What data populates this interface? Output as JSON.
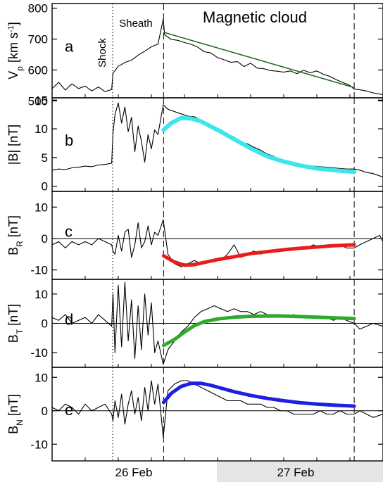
{
  "figure": {
    "annotations": {
      "shock": "Shock",
      "sheath": "Sheath",
      "magnetic_cloud": "Magnetic cloud"
    },
    "date_labels": [
      {
        "text": "26 Feb",
        "shaded": false
      },
      {
        "text": "27 Feb",
        "shaded": true
      }
    ],
    "colors": {
      "data_line": "#000000",
      "date_band": "#e5e5e5",
      "fit_v": "#1e6b1e",
      "fit_b": "#3de6ec",
      "fit_br": "#e81c1c",
      "fit_bt": "#2faa2f",
      "fit_bn": "#1f1fe0"
    }
  },
  "chart_data": [
    {
      "id": "vp",
      "type": "line",
      "panel_letter": "a",
      "ylabel_main": "V",
      "ylabel_sub": "p",
      "ylabel_unit_pre": " [km s",
      "ylabel_unit_sup": "-1",
      "ylabel_unit_post": "]",
      "x_unit": "fraction of time axis",
      "x_range": [
        0,
        1
      ],
      "ylim": [
        510,
        815
      ],
      "yticks": [
        500,
        600,
        700,
        800
      ],
      "zero_line": false,
      "events": {
        "shock": 0.183,
        "cloud_start": 0.337,
        "cloud_end": 0.913
      },
      "series": [
        {
          "role": "observed",
          "x": [
            0,
            0.02,
            0.04,
            0.06,
            0.08,
            0.1,
            0.12,
            0.14,
            0.16,
            0.18,
            0.184,
            0.2,
            0.22,
            0.24,
            0.26,
            0.28,
            0.3,
            0.32,
            0.336,
            0.34,
            0.36,
            0.38,
            0.4,
            0.42,
            0.44,
            0.46,
            0.48,
            0.5,
            0.52,
            0.54,
            0.56,
            0.58,
            0.6,
            0.62,
            0.64,
            0.66,
            0.68,
            0.7,
            0.72,
            0.74,
            0.76,
            0.78,
            0.8,
            0.82,
            0.84,
            0.86,
            0.88,
            0.9,
            0.913,
            0.93,
            0.95,
            0.97,
            1.0
          ],
          "values": [
            540,
            560,
            535,
            555,
            540,
            548,
            532,
            545,
            530,
            537,
            590,
            612,
            624,
            632,
            648,
            661,
            675,
            684,
            765,
            714,
            699,
            696,
            689,
            683,
            674,
            659,
            655,
            640,
            633,
            625,
            627,
            611,
            622,
            606,
            604,
            598,
            596,
            593,
            597,
            588,
            599,
            591,
            597,
            586,
            579,
            568,
            559,
            550,
            538,
            536,
            532,
            526,
            520
          ]
        },
        {
          "role": "fit",
          "x": [
            0.337,
            0.913
          ],
          "values": [
            722,
            543
          ]
        }
      ]
    },
    {
      "id": "b",
      "type": "line",
      "panel_letter": "b",
      "ylabel_main": "|B| [nT]",
      "x_unit": "fraction of time axis",
      "x_range": [
        0,
        1
      ],
      "ylim": [
        -0.9,
        15.4
      ],
      "yticks": [
        0,
        5,
        10,
        15
      ],
      "zero_line": false,
      "events": {
        "shock": 0.183,
        "cloud_start": 0.337,
        "cloud_end": 0.913
      },
      "series": [
        {
          "role": "observed",
          "x": [
            0,
            0.02,
            0.04,
            0.06,
            0.08,
            0.1,
            0.12,
            0.14,
            0.16,
            0.18,
            0.184,
            0.19,
            0.2,
            0.21,
            0.22,
            0.23,
            0.24,
            0.25,
            0.26,
            0.27,
            0.28,
            0.29,
            0.3,
            0.31,
            0.32,
            0.336,
            0.35,
            0.37,
            0.39,
            0.41,
            0.43,
            0.45,
            0.47,
            0.49,
            0.51,
            0.53,
            0.55,
            0.57,
            0.59,
            0.61,
            0.63,
            0.65,
            0.67,
            0.69,
            0.71,
            0.73,
            0.75,
            0.77,
            0.79,
            0.81,
            0.83,
            0.85,
            0.87,
            0.89,
            0.913,
            0.93,
            0.95,
            0.97,
            1.0
          ],
          "values": [
            2.8,
            3.0,
            2.9,
            3.2,
            3.3,
            3.5,
            3.4,
            3.7,
            3.8,
            4.0,
            9.2,
            12.5,
            14.5,
            11.0,
            13.8,
            9.5,
            12.0,
            6.0,
            10.5,
            7.8,
            4.2,
            9.0,
            6.5,
            9.8,
            9.0,
            14.2,
            13.4,
            13.0,
            12.6,
            12.2,
            12.1,
            11.5,
            11.0,
            10.2,
            9.8,
            9.0,
            8.6,
            7.6,
            7.4,
            6.8,
            6.3,
            5.6,
            5.2,
            4.6,
            4.2,
            4.0,
            3.8,
            3.6,
            3.5,
            3.4,
            3.3,
            3.2,
            3.1,
            3.0,
            3.0,
            2.8,
            2.4,
            2.2,
            1.6
          ]
        },
        {
          "role": "fit",
          "x": [
            0.337,
            0.36,
            0.39,
            0.42,
            0.45,
            0.48,
            0.51,
            0.55,
            0.6,
            0.65,
            0.7,
            0.75,
            0.8,
            0.85,
            0.913
          ],
          "values": [
            9.8,
            11.0,
            11.9,
            11.8,
            11.3,
            10.4,
            9.5,
            8.2,
            6.6,
            5.2,
            4.3,
            3.6,
            3.1,
            2.8,
            2.5
          ]
        }
      ]
    },
    {
      "id": "br",
      "type": "line",
      "panel_letter": "c",
      "ylabel_main": "B",
      "ylabel_sub": "R",
      "ylabel_unit_pre": " [nT]",
      "x_unit": "fraction of time axis",
      "x_range": [
        0,
        1
      ],
      "ylim": [
        -13,
        15
      ],
      "yticks": [
        -10,
        0,
        10
      ],
      "zero_line": true,
      "events": {
        "shock": 0.183,
        "cloud_start": 0.337,
        "cloud_end": 0.913
      },
      "series": [
        {
          "role": "observed",
          "x": [
            0,
            0.02,
            0.04,
            0.06,
            0.08,
            0.1,
            0.12,
            0.14,
            0.16,
            0.18,
            0.184,
            0.19,
            0.2,
            0.21,
            0.22,
            0.23,
            0.24,
            0.25,
            0.26,
            0.27,
            0.28,
            0.29,
            0.3,
            0.31,
            0.32,
            0.336,
            0.35,
            0.37,
            0.39,
            0.41,
            0.43,
            0.45,
            0.47,
            0.49,
            0.51,
            0.53,
            0.55,
            0.57,
            0.59,
            0.61,
            0.63,
            0.65,
            0.67,
            0.69,
            0.71,
            0.73,
            0.75,
            0.77,
            0.79,
            0.81,
            0.83,
            0.85,
            0.87,
            0.89,
            0.913,
            0.93,
            0.95,
            0.97,
            0.99,
            1.0
          ],
          "values": [
            -2,
            -1,
            -3,
            -1,
            -2,
            -1,
            -2,
            0,
            -1,
            -2,
            -4,
            -5,
            1,
            -4,
            2,
            3,
            -6,
            -2,
            5,
            -3,
            -1,
            4,
            -2,
            2,
            1,
            6,
            -5,
            -8,
            -9,
            -8,
            -7,
            -8,
            -7,
            -7,
            -7,
            -5,
            -2,
            -6,
            -5,
            -4,
            -5,
            -4,
            -4,
            -4,
            -3,
            -3,
            -3,
            -3,
            -2,
            -3,
            -2,
            -2,
            -2,
            -3,
            -3,
            -2,
            -1,
            0,
            1,
            -1
          ]
        },
        {
          "role": "fit",
          "x": [
            0.337,
            0.37,
            0.4,
            0.43,
            0.46,
            0.5,
            0.55,
            0.6,
            0.65,
            0.7,
            0.75,
            0.8,
            0.85,
            0.913
          ],
          "values": [
            -5.5,
            -7.5,
            -8.5,
            -8.3,
            -7.6,
            -6.7,
            -5.8,
            -4.8,
            -4.2,
            -3.6,
            -3.1,
            -2.7,
            -2.3,
            -2.0
          ]
        }
      ]
    },
    {
      "id": "bt",
      "type": "line",
      "panel_letter": "d",
      "ylabel_main": "B",
      "ylabel_sub": "T",
      "ylabel_unit_pre": " [nT]",
      "x_unit": "fraction of time axis",
      "x_range": [
        0,
        1
      ],
      "ylim": [
        -15,
        15
      ],
      "yticks": [
        -10,
        0,
        10
      ],
      "zero_line": true,
      "events": {
        "shock": 0.183,
        "cloud_start": 0.337,
        "cloud_end": 0.913
      },
      "series": [
        {
          "role": "observed",
          "x": [
            0,
            0.02,
            0.04,
            0.06,
            0.08,
            0.1,
            0.12,
            0.14,
            0.16,
            0.18,
            0.184,
            0.19,
            0.2,
            0.21,
            0.22,
            0.23,
            0.24,
            0.25,
            0.26,
            0.27,
            0.28,
            0.29,
            0.3,
            0.31,
            0.32,
            0.336,
            0.35,
            0.37,
            0.39,
            0.41,
            0.43,
            0.45,
            0.47,
            0.49,
            0.51,
            0.53,
            0.55,
            0.57,
            0.59,
            0.61,
            0.63,
            0.65,
            0.67,
            0.69,
            0.71,
            0.73,
            0.75,
            0.77,
            0.79,
            0.81,
            0.83,
            0.85,
            0.87,
            0.89,
            0.913,
            0.93,
            0.95,
            0.97,
            1.0
          ],
          "values": [
            2,
            1,
            3,
            0,
            1,
            2,
            0,
            3,
            1,
            -1,
            10,
            -10,
            13,
            -8,
            14,
            -6,
            8,
            -12,
            6,
            -9,
            10,
            -4,
            7,
            -10,
            -6,
            -14,
            -9,
            -6,
            -3,
            -1,
            2,
            4,
            5,
            6,
            5,
            4,
            5,
            4,
            4,
            3,
            4,
            3,
            3,
            3,
            2,
            3,
            2,
            2,
            2,
            2,
            2,
            1,
            2,
            1,
            0,
            -2,
            -1,
            0,
            -1
          ]
        },
        {
          "role": "fit",
          "x": [
            0.337,
            0.37,
            0.4,
            0.43,
            0.46,
            0.5,
            0.55,
            0.6,
            0.65,
            0.7,
            0.75,
            0.8,
            0.85,
            0.913
          ],
          "values": [
            -7.5,
            -5.5,
            -3.0,
            -0.8,
            0.6,
            1.5,
            2.1,
            2.4,
            2.5,
            2.5,
            2.3,
            2.1,
            1.9,
            1.6
          ]
        }
      ]
    },
    {
      "id": "bn",
      "type": "line",
      "panel_letter": "e",
      "ylabel_main": "B",
      "ylabel_sub": "N",
      "ylabel_unit_pre": " [nT]",
      "x_unit": "fraction of time axis",
      "x_range": [
        0,
        1
      ],
      "ylim": [
        -15,
        13
      ],
      "yticks": [
        -10,
        0,
        10
      ],
      "zero_line": true,
      "events": {
        "shock": 0.183,
        "cloud_start": 0.337,
        "cloud_end": 0.913
      },
      "series": [
        {
          "role": "observed",
          "x": [
            0,
            0.02,
            0.04,
            0.06,
            0.08,
            0.1,
            0.12,
            0.14,
            0.16,
            0.18,
            0.184,
            0.19,
            0.2,
            0.21,
            0.22,
            0.23,
            0.24,
            0.25,
            0.26,
            0.27,
            0.28,
            0.29,
            0.3,
            0.31,
            0.32,
            0.336,
            0.35,
            0.37,
            0.39,
            0.41,
            0.43,
            0.45,
            0.47,
            0.49,
            0.51,
            0.53,
            0.55,
            0.57,
            0.59,
            0.61,
            0.63,
            0.65,
            0.67,
            0.69,
            0.71,
            0.73,
            0.75,
            0.77,
            0.79,
            0.81,
            0.83,
            0.85,
            0.87,
            0.89,
            0.913,
            0.93,
            0.95,
            0.97,
            1.0
          ],
          "values": [
            1,
            0,
            2,
            1,
            -1,
            2,
            0,
            1,
            2,
            -1,
            -3,
            3,
            -2,
            5,
            -4,
            2,
            6,
            -1,
            4,
            -3,
            7,
            0,
            9,
            2,
            8,
            -8,
            6,
            8,
            9,
            9,
            8,
            7,
            6,
            5,
            4,
            3,
            3,
            3,
            2,
            2,
            2,
            1,
            1,
            0,
            0,
            -1,
            -1,
            -1,
            -1,
            0,
            -1,
            -1,
            0,
            -1,
            -1,
            0,
            -1,
            -2,
            -1
          ]
        },
        {
          "role": "fit",
          "x": [
            0.337,
            0.36,
            0.39,
            0.42,
            0.45,
            0.48,
            0.51,
            0.55,
            0.6,
            0.65,
            0.7,
            0.75,
            0.8,
            0.85,
            0.913
          ],
          "values": [
            2.5,
            5.2,
            7.3,
            8.2,
            8.2,
            7.6,
            6.8,
            5.7,
            4.6,
            3.7,
            3.0,
            2.4,
            2.0,
            1.7,
            1.4
          ]
        }
      ]
    }
  ]
}
